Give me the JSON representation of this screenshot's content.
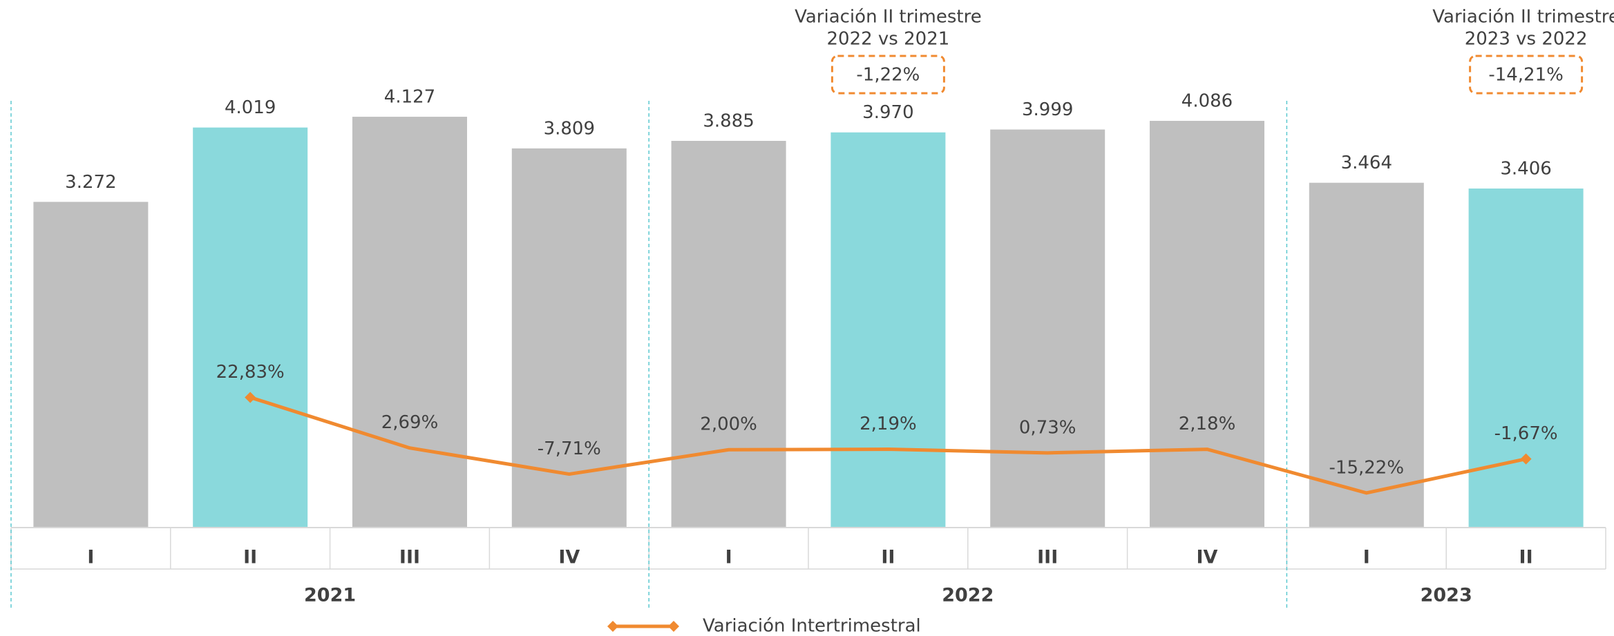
{
  "chart_data": {
    "type": "bar",
    "categories": [
      "I",
      "II",
      "III",
      "IV",
      "I",
      "II",
      "III",
      "IV",
      "I",
      "II"
    ],
    "group_labels": [
      "2021",
      "2022",
      "2023"
    ],
    "group_sizes": [
      4,
      4,
      2
    ],
    "values": [
      3272,
      4019,
      4127,
      3809,
      3885,
      3970,
      3999,
      4086,
      3464,
      3406
    ],
    "value_labels": [
      "3.272",
      "4.019",
      "4.127",
      "3.809",
      "3.885",
      "3.970",
      "3.999",
      "4.086",
      "3.464",
      "3.406"
    ],
    "colors": [
      "#bfbfbf",
      "#8ad9dc",
      "#bfbfbf",
      "#bfbfbf",
      "#bfbfbf",
      "#8ad9dc",
      "#bfbfbf",
      "#bfbfbf",
      "#bfbfbf",
      "#8ad9dc"
    ],
    "ylim": [
      0,
      5300
    ],
    "y2lim": [
      -29,
      181
    ],
    "series": [
      {
        "name": "Variación Intertrimestral",
        "color": "#f08a30",
        "axis": "y2",
        "values": [
          null,
          22.83,
          2.69,
          -7.71,
          2.0,
          2.19,
          0.73,
          2.18,
          -15.22,
          -1.67
        ],
        "value_labels": [
          null,
          "22,83%",
          "2,69%",
          "-7,71%",
          "2,00%",
          "2,19%",
          "0,73%",
          "2,18%",
          "-15,22%",
          "-1,67%"
        ]
      }
    ],
    "annotations": [
      {
        "lines": [
          "Variación II trimestre",
          "2022 vs 2021"
        ],
        "value": -1.22,
        "value_label": "-1,22%"
      },
      {
        "lines": [
          "Variación II trimestre",
          "2023 vs 2022"
        ],
        "value": -14.21,
        "value_label": "-14,21%"
      }
    ],
    "legend": "bottom"
  }
}
